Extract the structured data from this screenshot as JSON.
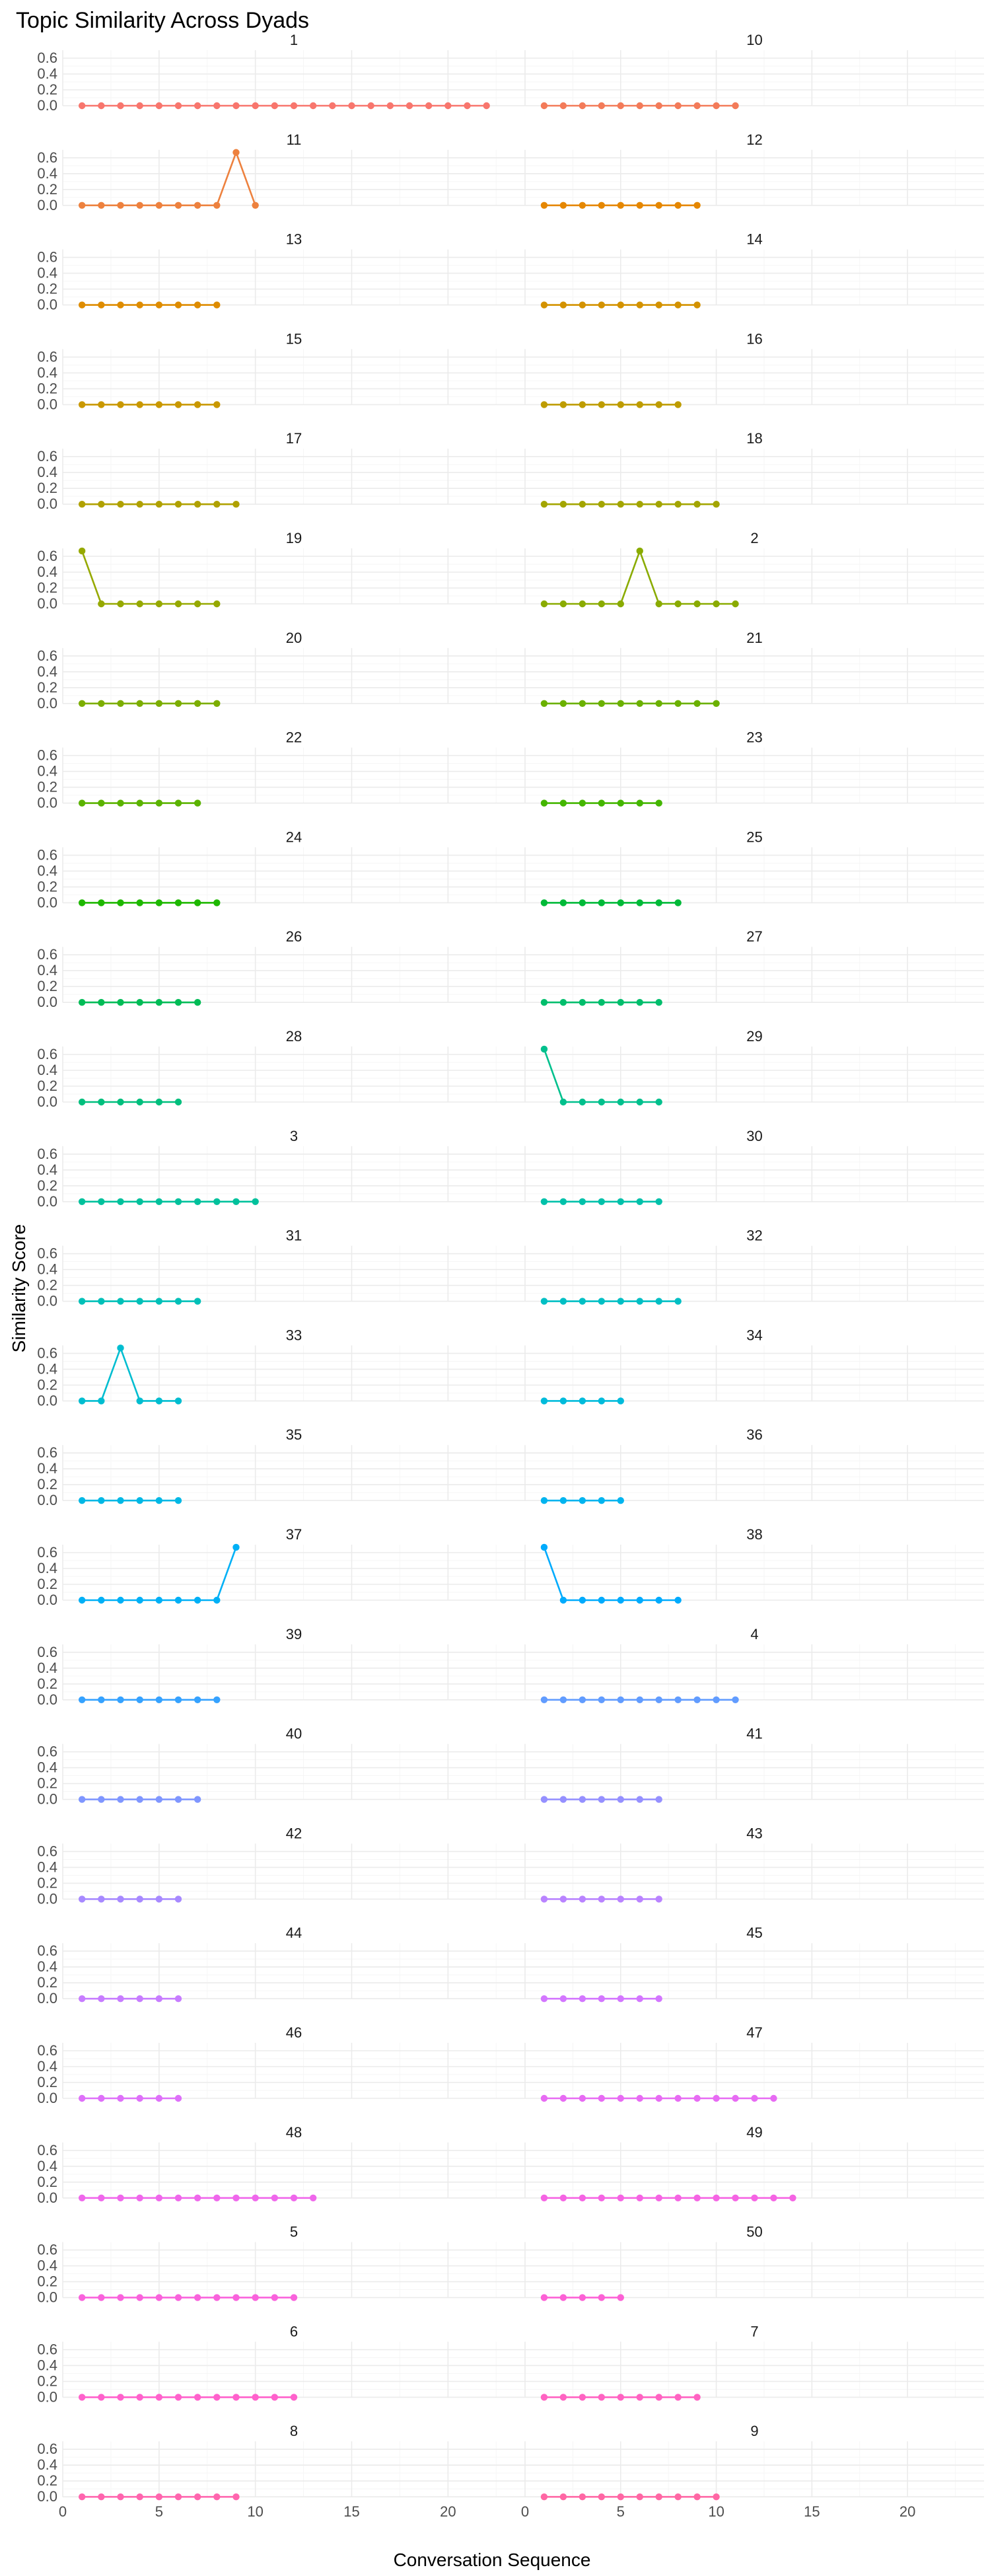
{
  "chart_data": {
    "type": "line",
    "title": "Topic Similarity Across Dyads",
    "xlabel": "Conversation Sequence",
    "ylabel": "Similarity Score",
    "xlim": [
      0,
      24
    ],
    "ylim": [
      0,
      0.7
    ],
    "x_ticks": [
      0,
      5,
      10,
      15,
      20
    ],
    "y_ticks": [
      0.0,
      0.2,
      0.4,
      0.6
    ],
    "y_tick_labels": [
      "0.0",
      "0.2",
      "0.4",
      "0.6"
    ],
    "grid": true,
    "legend": "none",
    "facets": [
      {
        "label": "1",
        "color": "#F8766D",
        "values": [
          0,
          0,
          0,
          0,
          0,
          0,
          0,
          0,
          0,
          0,
          0,
          0,
          0,
          0,
          0,
          0,
          0,
          0,
          0,
          0,
          0,
          0
        ]
      },
      {
        "label": "10",
        "color": "#F37B59",
        "values": [
          0,
          0,
          0,
          0,
          0,
          0,
          0,
          0,
          0,
          0,
          0
        ]
      },
      {
        "label": "11",
        "color": "#ED813E",
        "values": [
          0,
          0,
          0,
          0,
          0,
          0,
          0,
          0,
          0.667,
          0
        ]
      },
      {
        "label": "12",
        "color": "#E58700",
        "values": [
          0,
          0,
          0,
          0,
          0,
          0,
          0,
          0,
          0
        ]
      },
      {
        "label": "13",
        "color": "#DE8C00",
        "values": [
          0,
          0,
          0,
          0,
          0,
          0,
          0,
          0
        ]
      },
      {
        "label": "14",
        "color": "#D39200",
        "values": [
          0,
          0,
          0,
          0,
          0,
          0,
          0,
          0,
          0
        ]
      },
      {
        "label": "15",
        "color": "#C99800",
        "values": [
          0,
          0,
          0,
          0,
          0,
          0,
          0,
          0
        ]
      },
      {
        "label": "16",
        "color": "#BE9C00",
        "values": [
          0,
          0,
          0,
          0,
          0,
          0,
          0,
          0
        ]
      },
      {
        "label": "17",
        "color": "#B0A100",
        "values": [
          0,
          0,
          0,
          0,
          0,
          0,
          0,
          0,
          0
        ]
      },
      {
        "label": "18",
        "color": "#A3A500",
        "values": [
          0,
          0,
          0,
          0,
          0,
          0,
          0,
          0,
          0,
          0
        ]
      },
      {
        "label": "19",
        "color": "#96A900",
        "values": [
          0.667,
          0,
          0,
          0,
          0,
          0,
          0,
          0
        ]
      },
      {
        "label": "2",
        "color": "#8AAB00",
        "values": [
          0,
          0,
          0,
          0,
          0,
          0.667,
          0,
          0,
          0,
          0,
          0
        ]
      },
      {
        "label": "20",
        "color": "#7CAE00",
        "values": [
          0,
          0,
          0,
          0,
          0,
          0,
          0,
          0
        ]
      },
      {
        "label": "21",
        "color": "#6BB100",
        "values": [
          0,
          0,
          0,
          0,
          0,
          0,
          0,
          0,
          0,
          0
        ]
      },
      {
        "label": "22",
        "color": "#5BB300",
        "values": [
          0,
          0,
          0,
          0,
          0,
          0,
          0
        ]
      },
      {
        "label": "23",
        "color": "#44B600",
        "values": [
          0,
          0,
          0,
          0,
          0,
          0,
          0
        ]
      },
      {
        "label": "24",
        "color": "#1EB800",
        "values": [
          0,
          0,
          0,
          0,
          0,
          0,
          0,
          0
        ]
      },
      {
        "label": "25",
        "color": "#00BA38",
        "values": [
          0,
          0,
          0,
          0,
          0,
          0,
          0,
          0
        ]
      },
      {
        "label": "26",
        "color": "#00BC56",
        "values": [
          0,
          0,
          0,
          0,
          0,
          0,
          0
        ]
      },
      {
        "label": "27",
        "color": "#00BE6C",
        "values": [
          0,
          0,
          0,
          0,
          0,
          0,
          0
        ]
      },
      {
        "label": "28",
        "color": "#00BF7D",
        "values": [
          0,
          0,
          0,
          0,
          0,
          0
        ]
      },
      {
        "label": "29",
        "color": "#00C08D",
        "values": [
          0.667,
          0,
          0,
          0,
          0,
          0,
          0
        ]
      },
      {
        "label": "3",
        "color": "#00C19C",
        "values": [
          0,
          0,
          0,
          0,
          0,
          0,
          0,
          0,
          0,
          0
        ]
      },
      {
        "label": "30",
        "color": "#00C1AA",
        "values": [
          0,
          0,
          0,
          0,
          0,
          0,
          0
        ]
      },
      {
        "label": "31",
        "color": "#00C0B8",
        "values": [
          0,
          0,
          0,
          0,
          0,
          0,
          0
        ]
      },
      {
        "label": "32",
        "color": "#00BFC4",
        "values": [
          0,
          0,
          0,
          0,
          0,
          0,
          0,
          0
        ]
      },
      {
        "label": "33",
        "color": "#00BDD0",
        "values": [
          0,
          0,
          0.667,
          0,
          0,
          0
        ]
      },
      {
        "label": "34",
        "color": "#00BBDB",
        "values": [
          0,
          0,
          0,
          0,
          0
        ]
      },
      {
        "label": "35",
        "color": "#00B8E5",
        "values": [
          0,
          0,
          0,
          0,
          0,
          0
        ]
      },
      {
        "label": "36",
        "color": "#00B4EF",
        "values": [
          0,
          0,
          0,
          0,
          0
        ]
      },
      {
        "label": "37",
        "color": "#00B0F6",
        "values": [
          0,
          0,
          0,
          0,
          0,
          0,
          0,
          0,
          0.667
        ]
      },
      {
        "label": "38",
        "color": "#00ABFD",
        "values": [
          0.667,
          0,
          0,
          0,
          0,
          0,
          0,
          0
        ]
      },
      {
        "label": "39",
        "color": "#35A2FF",
        "values": [
          0,
          0,
          0,
          0,
          0,
          0,
          0,
          0
        ]
      },
      {
        "label": "4",
        "color": "#619CFF",
        "values": [
          0,
          0,
          0,
          0,
          0,
          0,
          0,
          0,
          0,
          0,
          0
        ]
      },
      {
        "label": "40",
        "color": "#7F96FF",
        "values": [
          0,
          0,
          0,
          0,
          0,
          0,
          0
        ]
      },
      {
        "label": "41",
        "color": "#9590FF",
        "values": [
          0,
          0,
          0,
          0,
          0,
          0,
          0
        ]
      },
      {
        "label": "42",
        "color": "#A789FF",
        "values": [
          0,
          0,
          0,
          0,
          0,
          0
        ]
      },
      {
        "label": "43",
        "color": "#B983FF",
        "values": [
          0,
          0,
          0,
          0,
          0,
          0,
          0
        ]
      },
      {
        "label": "44",
        "color": "#C77CFF",
        "values": [
          0,
          0,
          0,
          0,
          0,
          0
        ]
      },
      {
        "label": "45",
        "color": "#D376FF",
        "values": [
          0,
          0,
          0,
          0,
          0,
          0,
          0
        ]
      },
      {
        "label": "46",
        "color": "#DE70F9",
        "values": [
          0,
          0,
          0,
          0,
          0,
          0
        ]
      },
      {
        "label": "47",
        "color": "#E76BF3",
        "values": [
          0,
          0,
          0,
          0,
          0,
          0,
          0,
          0,
          0,
          0,
          0,
          0,
          0
        ]
      },
      {
        "label": "48",
        "color": "#EF67EB",
        "values": [
          0,
          0,
          0,
          0,
          0,
          0,
          0,
          0,
          0,
          0,
          0,
          0,
          0
        ]
      },
      {
        "label": "49",
        "color": "#F564E3",
        "values": [
          0,
          0,
          0,
          0,
          0,
          0,
          0,
          0,
          0,
          0,
          0,
          0,
          0,
          0
        ]
      },
      {
        "label": "5",
        "color": "#F962DC",
        "values": [
          0,
          0,
          0,
          0,
          0,
          0,
          0,
          0,
          0,
          0,
          0,
          0
        ]
      },
      {
        "label": "50",
        "color": "#FC61D5",
        "values": [
          0,
          0,
          0,
          0,
          0
        ]
      },
      {
        "label": "6",
        "color": "#FF61CC",
        "values": [
          0,
          0,
          0,
          0,
          0,
          0,
          0,
          0,
          0,
          0,
          0,
          0
        ]
      },
      {
        "label": "7",
        "color": "#FF63C2",
        "values": [
          0,
          0,
          0,
          0,
          0,
          0,
          0,
          0,
          0
        ]
      },
      {
        "label": "8",
        "color": "#FF65AE",
        "values": [
          0,
          0,
          0,
          0,
          0,
          0,
          0,
          0,
          0
        ]
      },
      {
        "label": "9",
        "color": "#FF67A4",
        "values": [
          0,
          0,
          0,
          0,
          0,
          0,
          0,
          0,
          0,
          0
        ]
      }
    ]
  }
}
